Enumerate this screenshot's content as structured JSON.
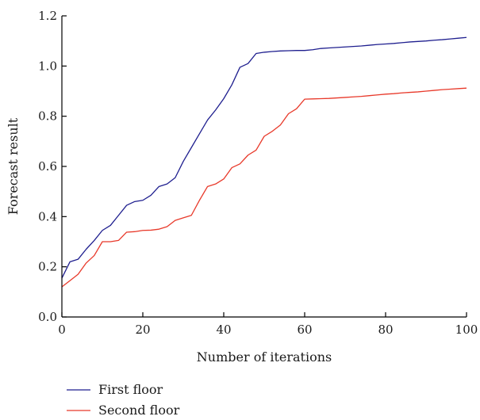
{
  "chart_data": {
    "type": "line",
    "title": "",
    "xlabel": "Number of iterations",
    "ylabel": "Forecast result",
    "xlim": [
      0,
      100
    ],
    "ylim": [
      0.0,
      1.2
    ],
    "x_ticks": [
      0,
      20,
      40,
      60,
      80,
      100
    ],
    "x_tick_labels": [
      "0",
      "20",
      "40",
      "60",
      "80",
      "100"
    ],
    "y_ticks": [
      0.0,
      0.2,
      0.4,
      0.6,
      0.8,
      1.0,
      1.2
    ],
    "y_tick_labels": [
      "0.0",
      "0.2",
      "0.4",
      "0.6",
      "0.8",
      "1.0",
      "1.2"
    ],
    "grid": false,
    "legend_position": "bottom-left",
    "x": [
      0,
      2,
      4,
      6,
      8,
      10,
      12,
      14,
      16,
      18,
      20,
      22,
      24,
      26,
      28,
      30,
      32,
      34,
      36,
      38,
      40,
      42,
      44,
      46,
      48,
      50,
      52,
      54,
      56,
      58,
      60,
      62,
      64,
      66,
      68,
      70,
      72,
      74,
      76,
      78,
      80,
      82,
      84,
      86,
      88,
      90,
      92,
      94,
      96,
      98,
      100
    ],
    "series": [
      {
        "name": "First floor",
        "color": "#1f1f8f",
        "values": [
          0.155,
          0.22,
          0.23,
          0.27,
          0.305,
          0.345,
          0.365,
          0.405,
          0.445,
          0.46,
          0.465,
          0.485,
          0.52,
          0.53,
          0.555,
          0.62,
          0.675,
          0.73,
          0.785,
          0.825,
          0.87,
          0.925,
          0.995,
          1.01,
          1.05,
          1.055,
          1.058,
          1.06,
          1.061,
          1.062,
          1.062,
          1.065,
          1.07,
          1.072,
          1.074,
          1.076,
          1.078,
          1.08,
          1.083,
          1.086,
          1.088,
          1.09,
          1.093,
          1.096,
          1.098,
          1.1,
          1.103,
          1.105,
          1.108,
          1.111,
          1.114
        ]
      },
      {
        "name": "Second floor",
        "color": "#e8392a",
        "values": [
          0.12,
          0.145,
          0.17,
          0.215,
          0.245,
          0.3,
          0.3,
          0.305,
          0.338,
          0.34,
          0.345,
          0.346,
          0.35,
          0.36,
          0.385,
          0.395,
          0.405,
          0.465,
          0.52,
          0.53,
          0.55,
          0.595,
          0.61,
          0.645,
          0.665,
          0.72,
          0.74,
          0.765,
          0.81,
          0.83,
          0.868,
          0.869,
          0.87,
          0.871,
          0.873,
          0.875,
          0.877,
          0.879,
          0.882,
          0.885,
          0.888,
          0.89,
          0.893,
          0.895,
          0.897,
          0.9,
          0.903,
          0.906,
          0.908,
          0.91,
          0.912
        ]
      }
    ]
  }
}
